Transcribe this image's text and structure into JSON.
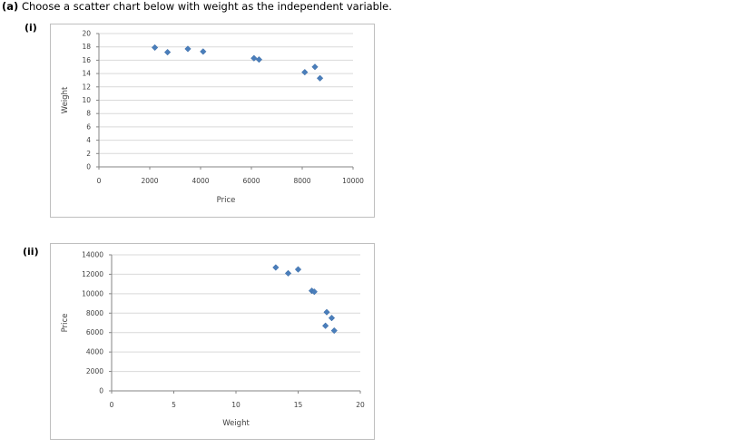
{
  "question": {
    "part": "(a)",
    "text": "Choose a scatter chart below with weight as the independent variable."
  },
  "options": [
    {
      "label": "(i)"
    },
    {
      "label": "(ii)"
    }
  ],
  "colors": {
    "marker": "#4a7ebb",
    "gridline": "#d9d9d9",
    "axis": "#868686",
    "frame": "#bfbfbf"
  },
  "chart_data": [
    {
      "type": "scatter",
      "title": "",
      "xlabel": "Price",
      "ylabel": "Weight",
      "xlim": [
        0,
        10000
      ],
      "ylim": [
        0,
        20
      ],
      "xticks": [
        0,
        2000,
        4000,
        6000,
        8000,
        10000
      ],
      "yticks": [
        0,
        2,
        4,
        6,
        8,
        10,
        12,
        14,
        16,
        18,
        20
      ],
      "grid": "horizontal",
      "legend": "none",
      "x": [
        2200,
        2700,
        3500,
        4100,
        6100,
        6300,
        8100,
        8500,
        8700
      ],
      "y": [
        17.9,
        17.2,
        17.7,
        17.3,
        16.3,
        16.1,
        14.2,
        15.0,
        13.3
      ]
    },
    {
      "type": "scatter",
      "title": "",
      "xlabel": "Weight",
      "ylabel": "Price",
      "xlim": [
        0,
        20
      ],
      "ylim": [
        0,
        14000
      ],
      "xticks": [
        0,
        5,
        10,
        15,
        20
      ],
      "yticks": [
        0,
        2000,
        4000,
        6000,
        8000,
        10000,
        12000,
        14000
      ],
      "grid": "horizontal",
      "legend": "none",
      "x": [
        13.2,
        14.2,
        15.0,
        16.1,
        16.3,
        17.2,
        17.3,
        17.7,
        17.9
      ],
      "y": [
        12700,
        12100,
        12500,
        10300,
        10200,
        6700,
        8100,
        7500,
        6200
      ]
    }
  ]
}
